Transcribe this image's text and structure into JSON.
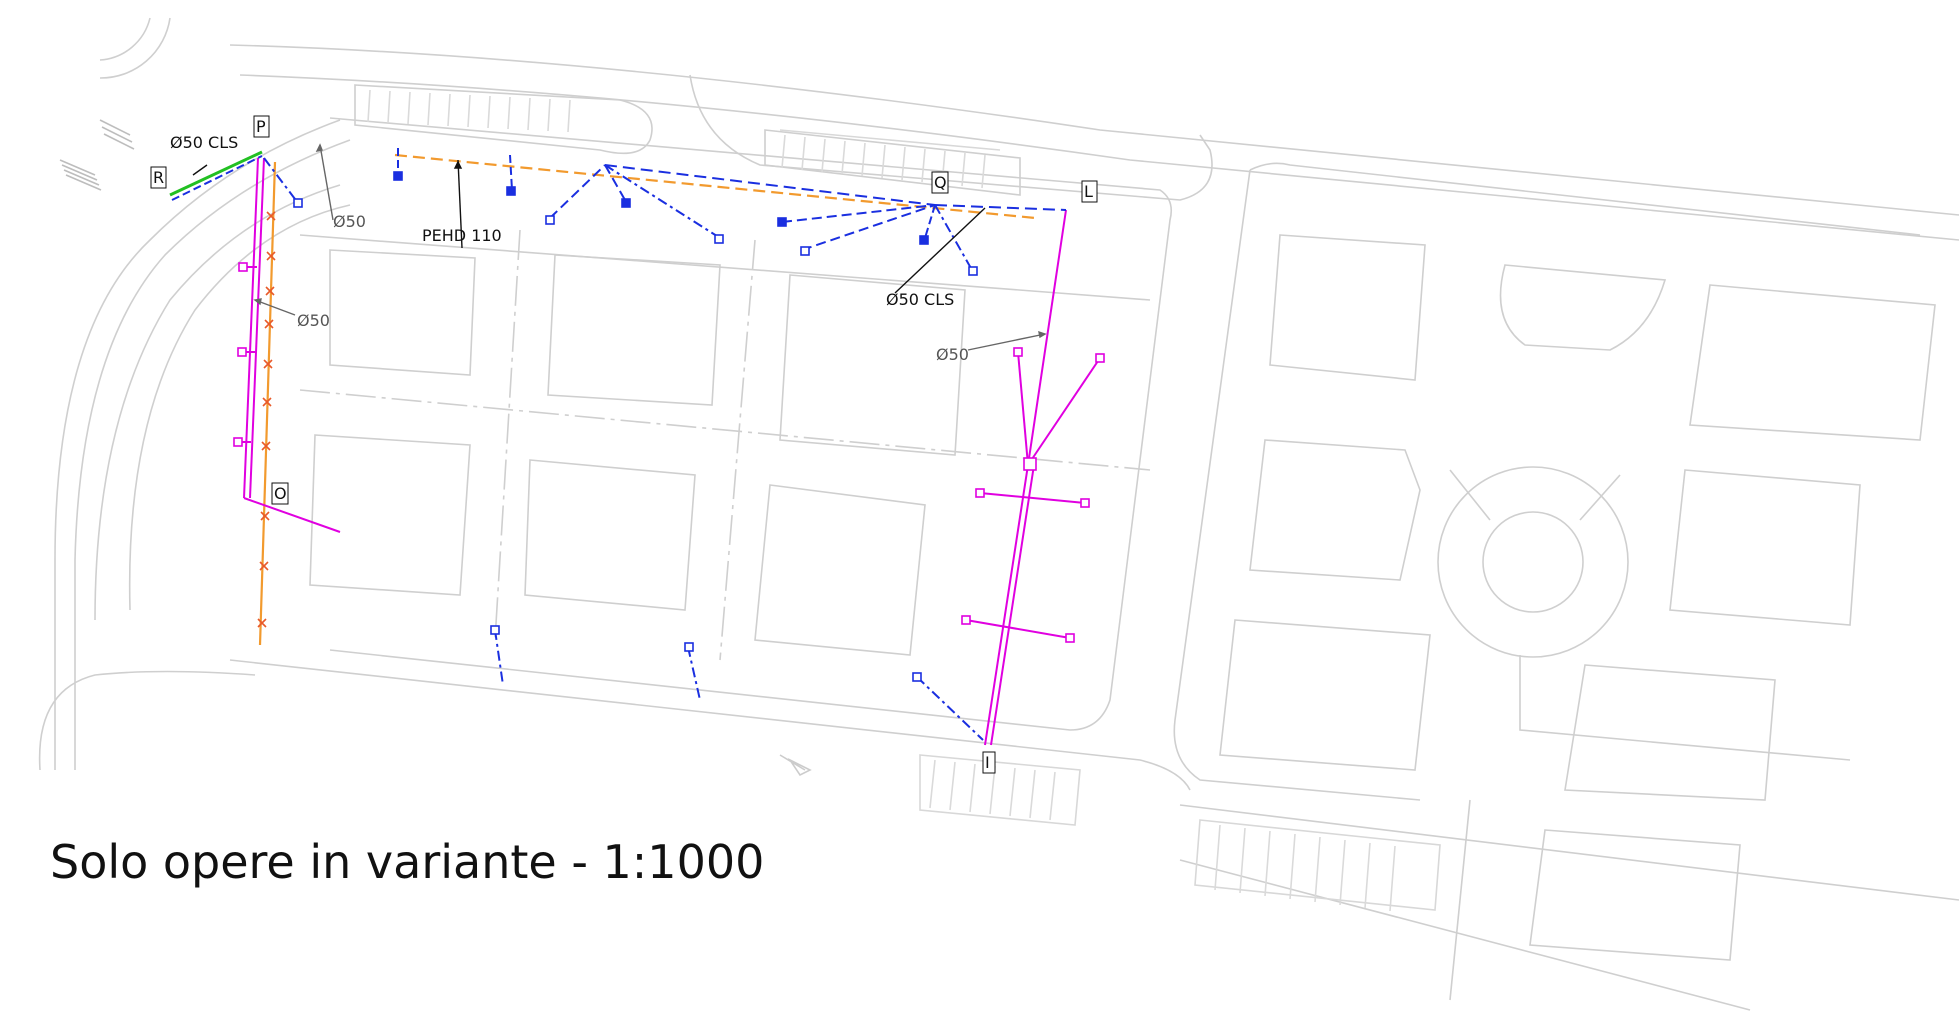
{
  "caption": "Solo opere in variante - 1:1000",
  "point_tags": {
    "P": "P",
    "R": "R",
    "Q": "Q",
    "L": "L",
    "O": "O",
    "I": "I"
  },
  "labels": {
    "cls_top_left": "Ø50 CLS",
    "cls_right": "Ø50 CLS",
    "pehd": "PEHD 110",
    "d50_a": "Ø50",
    "d50_b": "Ø50",
    "d50_c": "Ø50"
  },
  "colors": {
    "base_lines": "#cfcfcf",
    "magenta_network": "#e000e0",
    "orange_network": "#f29a2e",
    "blue_network": "#1a2fe0",
    "green_line": "#22c022",
    "leader": "#111111",
    "grey_label": "#555555"
  }
}
